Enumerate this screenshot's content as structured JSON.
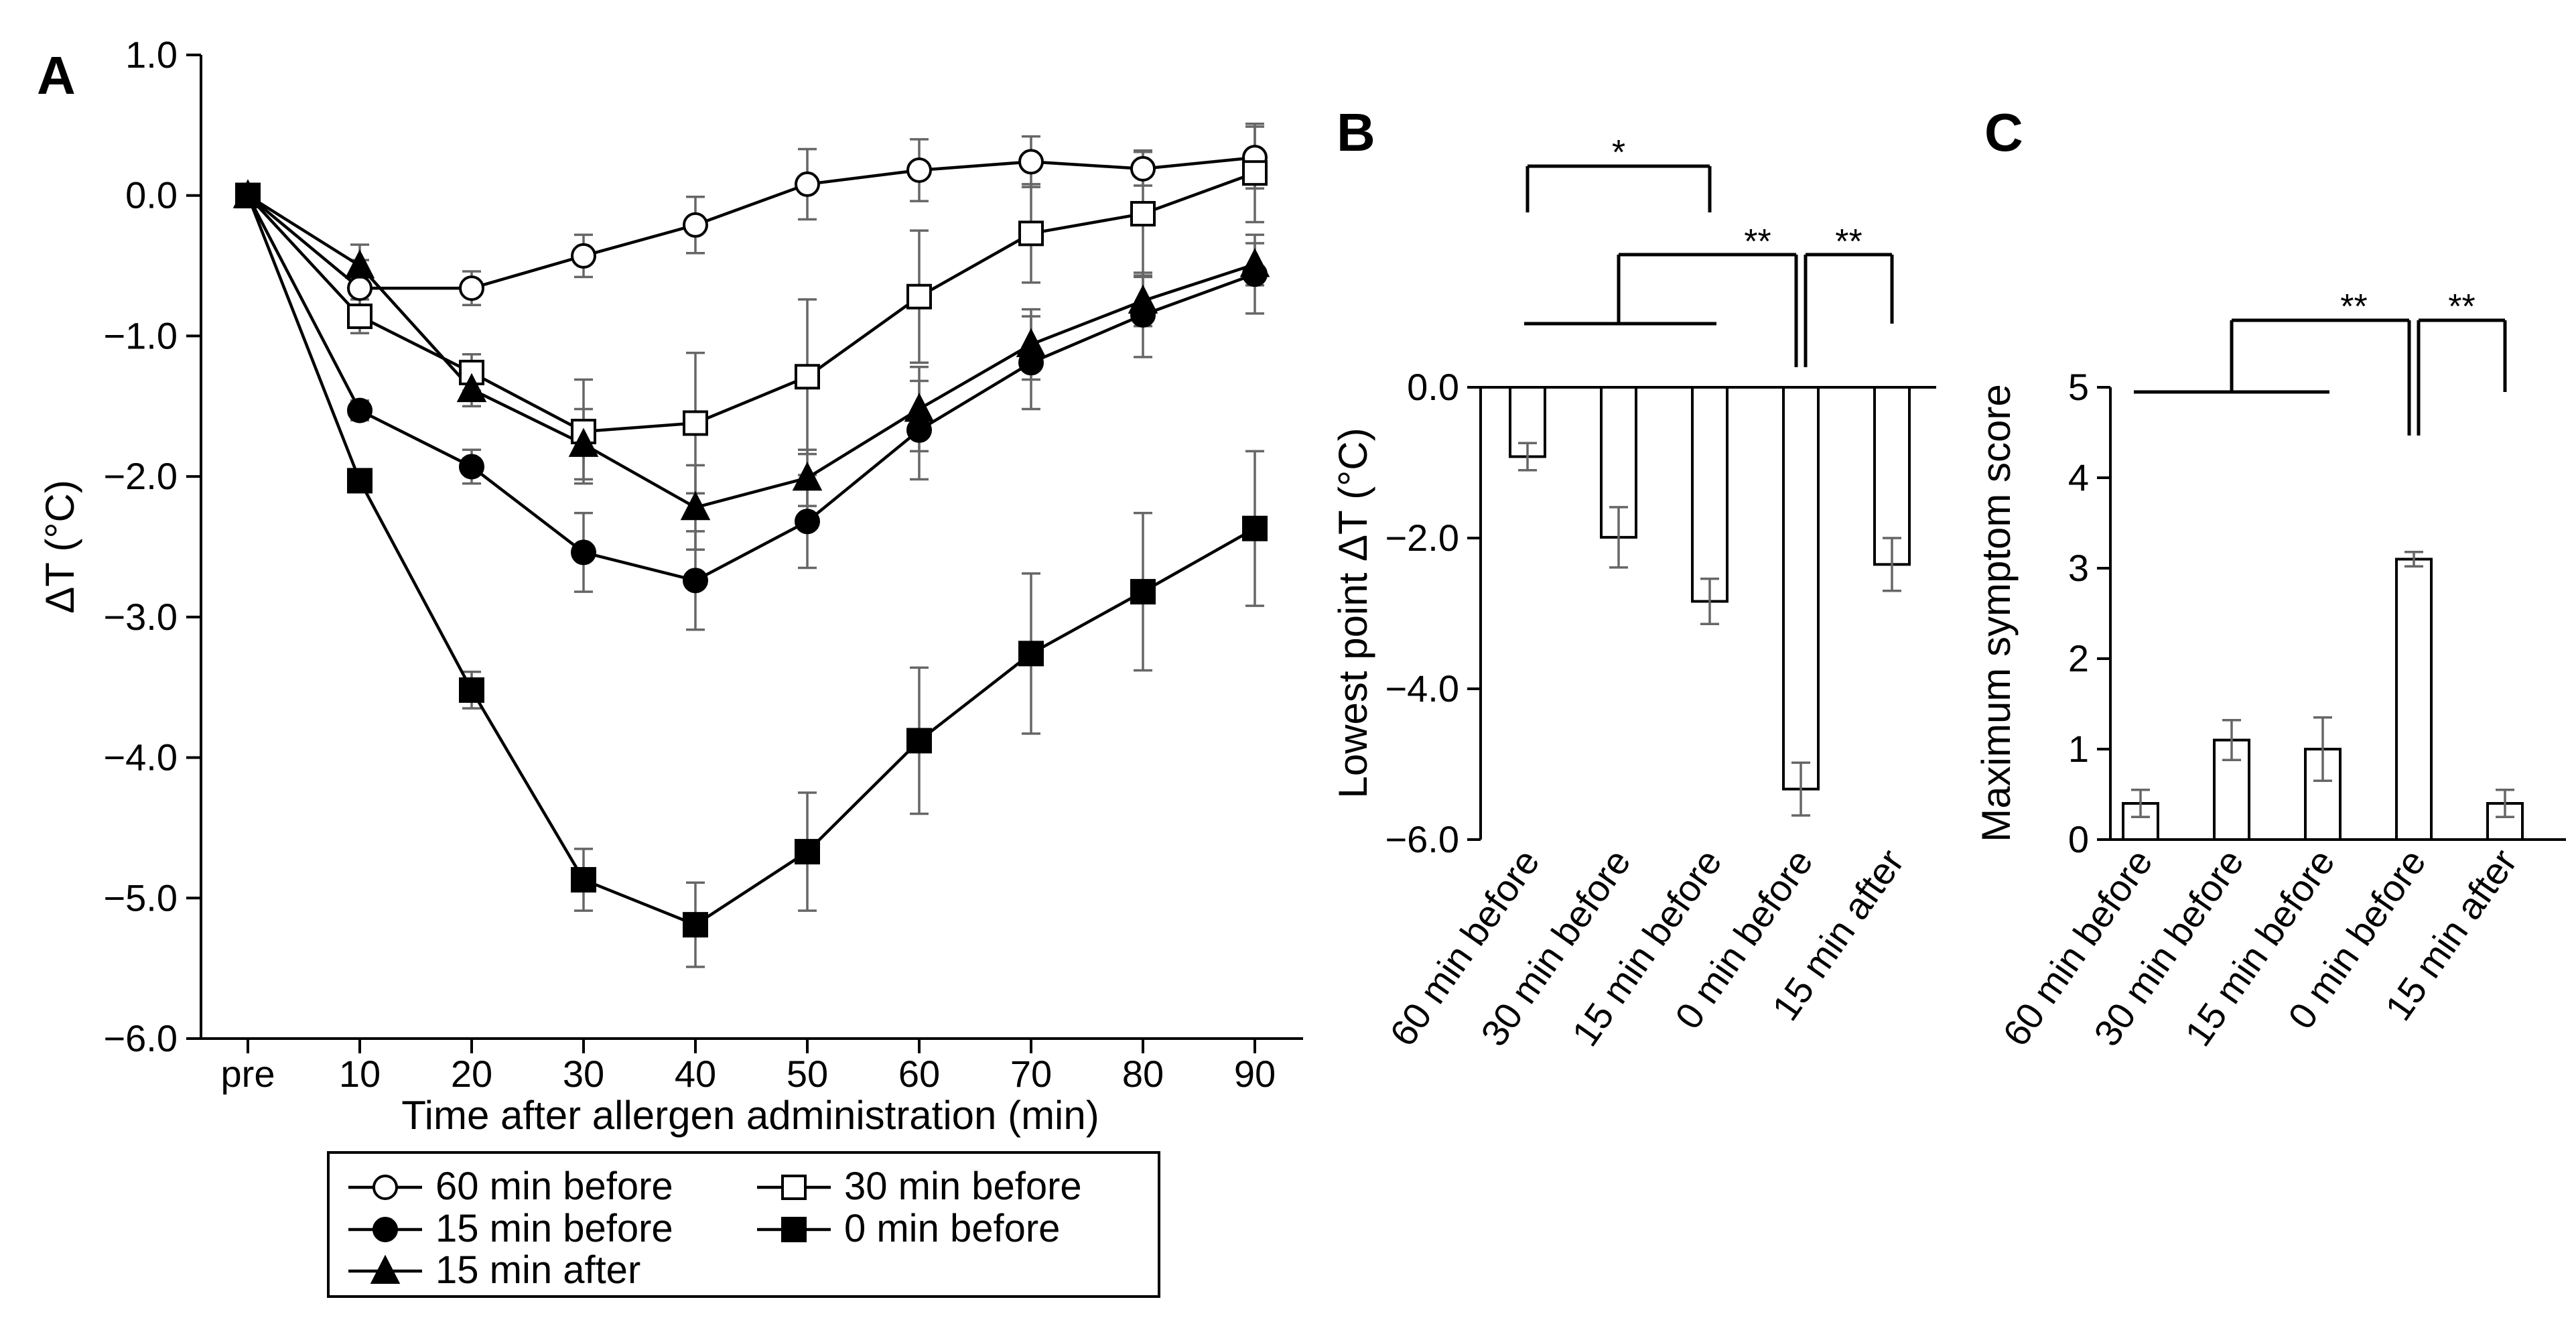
{
  "panels": {
    "A": {
      "letter": "A"
    },
    "B": {
      "letter": "B"
    },
    "C": {
      "letter": "C"
    }
  },
  "chart_data": [
    {
      "panel": "A",
      "type": "line",
      "title": "",
      "xlabel": "Time after allergen administration (min)",
      "ylabel": "ΔT (°C)",
      "categories": [
        "pre",
        "10",
        "20",
        "30",
        "40",
        "50",
        "60",
        "70",
        "80",
        "90"
      ],
      "ylim": [
        -6.0,
        1.0
      ],
      "yticks": [
        1.0,
        0.0,
        -1.0,
        -2.0,
        -3.0,
        -4.0,
        -5.0,
        -6.0
      ],
      "ytick_labels": [
        "1.0",
        "0.0",
        "−1.0",
        "−2.0",
        "−3.0",
        "−4.0",
        "−5.0",
        "−6.0"
      ],
      "series": [
        {
          "name": "60 min before",
          "marker": "circle-open",
          "values": [
            0,
            -0.66,
            -0.66,
            -0.43,
            -0.21,
            0.08,
            0.18,
            0.24,
            0.19,
            0.27
          ],
          "errors": [
            0,
            0.2,
            0.12,
            0.15,
            0.2,
            0.25,
            0.22,
            0.18,
            0.12,
            0.22
          ]
        },
        {
          "name": "30 min before",
          "marker": "square-open",
          "values": [
            0,
            -0.86,
            -1.26,
            -1.68,
            -1.62,
            -1.29,
            -0.72,
            -0.27,
            -0.13,
            0.16
          ],
          "errors": [
            0,
            0.12,
            0.13,
            0.37,
            0.5,
            0.55,
            0.47,
            0.35,
            0.45,
            0.35
          ]
        },
        {
          "name": "15 min before",
          "marker": "circle-filled",
          "values": [
            0,
            -1.53,
            -1.93,
            -2.54,
            -2.74,
            -2.32,
            -1.67,
            -1.19,
            -0.85,
            -0.56
          ],
          "errors": [
            0,
            0.07,
            0.12,
            0.28,
            0.35,
            0.33,
            0.35,
            0.33,
            0.3,
            0.28
          ]
        },
        {
          "name": "15 min after",
          "marker": "triangle-filled",
          "values": [
            0,
            -0.5,
            -1.38,
            -1.77,
            -2.22,
            -2.01,
            -1.52,
            -1.06,
            -0.75,
            -0.49
          ],
          "errors": [
            0,
            0.15,
            0.12,
            0.25,
            0.3,
            0.2,
            0.3,
            0.25,
            0.18,
            0.15
          ]
        },
        {
          "name": "0 min before",
          "marker": "square-filled",
          "values": [
            0,
            -2.03,
            -3.52,
            -4.87,
            -5.19,
            -4.67,
            -3.88,
            -3.26,
            -2.82,
            -2.37
          ],
          "errors": [
            0,
            0.05,
            0.13,
            0.22,
            0.3,
            0.42,
            0.52,
            0.57,
            0.56,
            0.55
          ]
        }
      ],
      "legend": {
        "placement": "bottom",
        "entries": [
          "60 min before",
          "30 min before",
          "15 min before",
          "0 min before",
          "15 min after"
        ]
      }
    },
    {
      "panel": "B",
      "type": "bar",
      "title": "",
      "xlabel": "",
      "ylabel": "Lowest point ΔT (°C)",
      "categories": [
        "60 min before",
        "30 min before",
        "15 min before",
        "0 min before",
        "15 min after"
      ],
      "values": [
        -0.92,
        -1.99,
        -2.84,
        -5.33,
        -2.35
      ],
      "errors": [
        0.18,
        0.4,
        0.3,
        0.35,
        0.35
      ],
      "ylim": [
        -6.0,
        0.0
      ],
      "yticks": [
        0.0,
        -2.0,
        -4.0,
        -6.0
      ],
      "ytick_labels": [
        "0.0",
        "−2.0",
        "−4.0",
        "−6.0"
      ],
      "significance": [
        {
          "label": "*",
          "between": [
            "60 min before",
            "15 min before"
          ]
        },
        {
          "label": "**",
          "between": [
            "60 min before, 30 min before, 15 min before",
            "0 min before"
          ]
        },
        {
          "label": "**",
          "between": [
            "0 min before",
            "15 min after"
          ]
        }
      ]
    },
    {
      "panel": "C",
      "type": "bar",
      "title": "",
      "xlabel": "",
      "ylabel": "Maximum symptom score",
      "categories": [
        "60 min before",
        "30 min before",
        "15 min before",
        "0 min before",
        "15 min after"
      ],
      "values": [
        0.4,
        1.1,
        1.0,
        3.1,
        0.4
      ],
      "errors": [
        0.15,
        0.22,
        0.35,
        0.08,
        0.15
      ],
      "ylim": [
        0,
        5
      ],
      "yticks": [
        0,
        1,
        2,
        3,
        4,
        5
      ],
      "ytick_labels": [
        "0",
        "1",
        "2",
        "3",
        "4",
        "5"
      ],
      "significance": [
        {
          "label": "**",
          "between": [
            "60 min before, 30 min before, 15 min before",
            "0 min before"
          ]
        },
        {
          "label": "**",
          "between": [
            "0 min before",
            "15 min after"
          ]
        }
      ]
    }
  ]
}
